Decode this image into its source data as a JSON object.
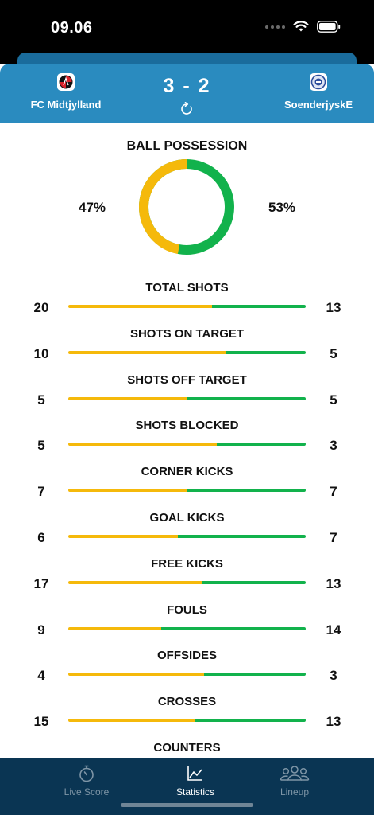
{
  "status_bar": {
    "time": "09.06"
  },
  "match": {
    "home_team": "FC Midtjylland",
    "away_team": "SoenderjyskE",
    "score": "3 - 2"
  },
  "possession": {
    "title": "BALL POSSESSION",
    "home": "47%",
    "away": "53%",
    "home_fraction": 0.47
  },
  "stats": [
    {
      "label": "TOTAL SHOTS",
      "home": "20",
      "away": "13"
    },
    {
      "label": "SHOTS ON TARGET",
      "home": "10",
      "away": "5"
    },
    {
      "label": "SHOTS OFF TARGET",
      "home": "5",
      "away": "5"
    },
    {
      "label": "SHOTS BLOCKED",
      "home": "5",
      "away": "3"
    },
    {
      "label": "CORNER KICKS",
      "home": "7",
      "away": "7"
    },
    {
      "label": "GOAL KICKS",
      "home": "6",
      "away": "7"
    },
    {
      "label": "FREE KICKS",
      "home": "17",
      "away": "13"
    },
    {
      "label": "FOULS",
      "home": "9",
      "away": "14"
    },
    {
      "label": "OFFSIDES",
      "home": "4",
      "away": "3"
    },
    {
      "label": "CROSSES",
      "home": "15",
      "away": "13"
    },
    {
      "label": "COUNTERS",
      "home": "",
      "away": ""
    }
  ],
  "tabs": [
    {
      "label": "Live Score",
      "icon": "stopwatch-icon",
      "active": false
    },
    {
      "label": "Statistics",
      "icon": "line-chart-icon",
      "active": true
    },
    {
      "label": "Lineup",
      "icon": "people-icon",
      "active": false
    }
  ],
  "colors": {
    "home": "#f5b90b",
    "away": "#12b24c",
    "header": "#2a8bbf",
    "tab_bar": "#0a3553"
  }
}
